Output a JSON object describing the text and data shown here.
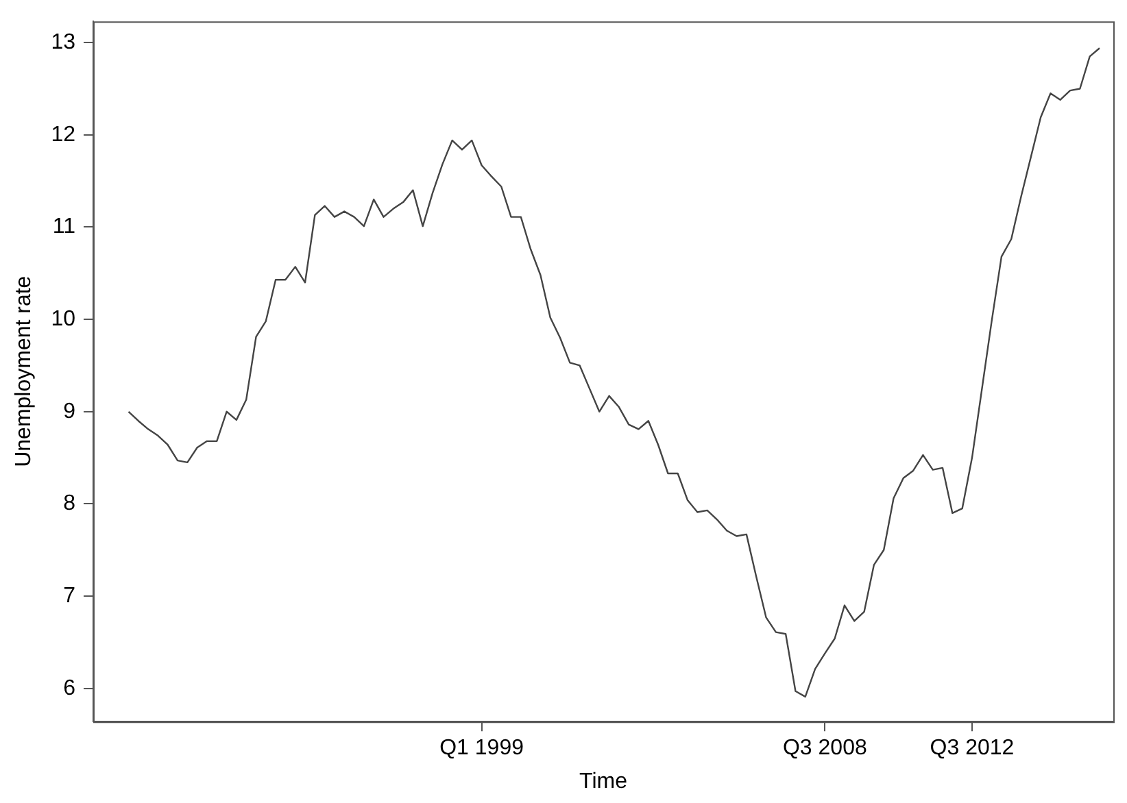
{
  "chart_data": {
    "type": "line",
    "xlabel": "Time",
    "ylabel": "Unemployment rate",
    "categories": [
      null,
      null,
      null,
      null,
      null,
      null,
      null,
      null,
      null,
      null,
      null,
      null,
      null,
      null,
      null,
      null,
      null,
      null,
      null,
      null,
      null,
      null,
      null,
      null,
      null,
      null,
      null,
      null,
      null,
      null,
      null,
      null,
      null,
      null,
      null,
      null,
      "Q1 1999",
      null,
      null,
      null,
      null,
      null,
      null,
      null,
      null,
      null,
      null,
      null,
      null,
      null,
      null,
      null,
      null,
      null,
      null,
      null,
      null,
      null,
      null,
      null,
      null,
      null,
      null,
      null,
      null,
      null,
      null,
      null,
      null,
      null,
      null,
      "Q3 2008",
      null,
      null,
      null,
      null,
      null,
      null,
      null,
      null,
      null,
      null,
      null,
      null,
      null,
      null,
      "Q3 2012",
      null,
      null,
      null,
      null,
      null,
      null,
      null,
      null,
      null,
      null,
      null,
      null,
      null
    ],
    "values": [
      9.0,
      8.9,
      8.81,
      8.74,
      8.64,
      8.47,
      8.45,
      8.61,
      8.68,
      8.68,
      9.0,
      8.91,
      9.13,
      9.81,
      9.98,
      10.43,
      10.43,
      10.57,
      10.4,
      11.13,
      11.23,
      11.11,
      11.17,
      11.11,
      11.01,
      11.3,
      11.11,
      11.2,
      11.27,
      11.4,
      11.01,
      11.37,
      11.68,
      11.94,
      11.84,
      11.94,
      11.67,
      11.55,
      11.44,
      11.11,
      11.11,
      10.76,
      10.48,
      10.02,
      9.8,
      9.53,
      9.5,
      9.25,
      9.0,
      9.17,
      9.05,
      8.86,
      8.81,
      8.9,
      8.64,
      8.33,
      8.33,
      8.04,
      7.91,
      7.93,
      7.83,
      7.71,
      7.65,
      7.67,
      7.21,
      6.77,
      6.61,
      6.59,
      5.97,
      5.91,
      6.21,
      6.38,
      6.54,
      6.9,
      6.73,
      6.83,
      7.34,
      7.5,
      8.06,
      8.28,
      8.36,
      8.53,
      8.37,
      8.39,
      7.9,
      7.95,
      8.5,
      9.24,
      9.98,
      10.68,
      10.87,
      11.33,
      11.76,
      12.19,
      12.45,
      12.38,
      12.48,
      12.5,
      12.85,
      12.94
    ],
    "color": "#444444",
    "ylim": [
      5.64,
      13.23
    ],
    "yticks": [
      6,
      7,
      8,
      9,
      10,
      11,
      12,
      13
    ],
    "marker": "none"
  }
}
